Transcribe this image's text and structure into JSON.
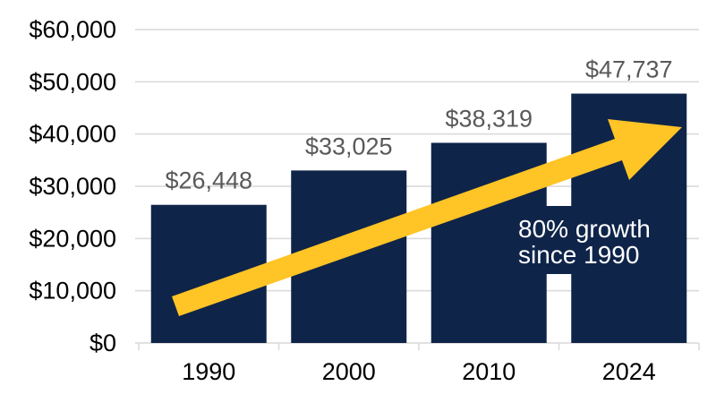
{
  "chart_data": {
    "type": "bar",
    "title": "",
    "xlabel": "",
    "ylabel": "",
    "categories": [
      "1990",
      "2000",
      "2010",
      "2024"
    ],
    "values": [
      26448,
      33025,
      38319,
      47737
    ],
    "value_labels": [
      "$26,448",
      "$33,025",
      "$38,319",
      "$47,737"
    ],
    "ylim": [
      0,
      60000
    ],
    "y_tick_step": 10000,
    "y_ticks": [
      {
        "value": 0,
        "label": "$0"
      },
      {
        "value": 10000,
        "label": "$10,000"
      },
      {
        "value": 20000,
        "label": "$20,000"
      },
      {
        "value": 30000,
        "label": "$30,000"
      },
      {
        "value": 40000,
        "label": "$40,000"
      },
      {
        "value": 50000,
        "label": "$50,000"
      },
      {
        "value": 60000,
        "label": "$60,000"
      }
    ],
    "grid": "horizontal",
    "legend": "none",
    "annotation": {
      "lines": [
        "80% growth",
        "since 1990"
      ],
      "shape": "arrow-up-right"
    },
    "colors": {
      "bar": "#0F2449",
      "arrow": "#FFC425",
      "gridline": "#D9D9D9",
      "category_tick": "#D9D9D9",
      "value_label": "#595959",
      "axis_label": "#000000",
      "annotation_text": "#FFFFFF",
      "background": "#FFFFFF"
    }
  }
}
